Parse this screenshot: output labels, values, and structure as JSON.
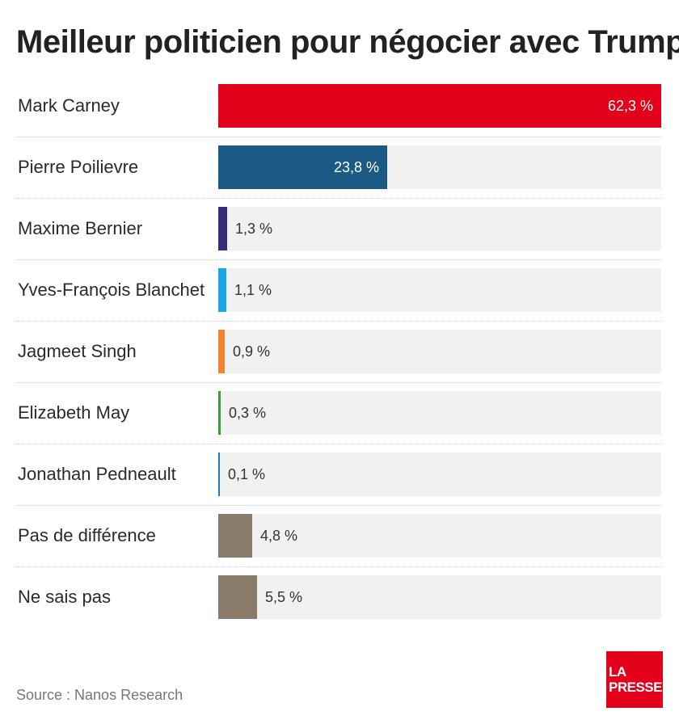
{
  "title": "Meilleur politicien pour négocier avec Trump",
  "source": "Source : Nanos Research",
  "logo": {
    "line1": "LA",
    "line2": "PRESSE",
    "color": "#e2001a"
  },
  "chart_data": {
    "type": "bar",
    "orientation": "horizontal",
    "title": "Meilleur politicien pour négocier avec Trump",
    "xlim": [
      0,
      62.3
    ],
    "unit": "%",
    "grid": false,
    "categories": [
      "Mark Carney",
      "Pierre Poilievre",
      "Maxime Bernier",
      "Yves-François Blanchet",
      "Jagmeet Singh",
      "Elizabeth May",
      "Jonathan Pedneault",
      "Pas de différence",
      "Ne sais pas"
    ],
    "values": [
      62.3,
      23.8,
      1.3,
      1.1,
      0.9,
      0.3,
      0.1,
      4.8,
      5.5
    ],
    "value_labels": [
      "62,3 %",
      "23,8 %",
      "1,3 %",
      "1,1 %",
      "0,9 %",
      "0,3 %",
      "0,1 %",
      "4,8 %",
      "5,5 %"
    ],
    "colors": [
      "#e2001a",
      "#1b5a84",
      "#3a2a78",
      "#19a6e8",
      "#f58233",
      "#3e9a3e",
      "#2a78b8",
      "#8a7a6a",
      "#8a7a6a"
    ],
    "track_color": "#f1f1f1"
  }
}
